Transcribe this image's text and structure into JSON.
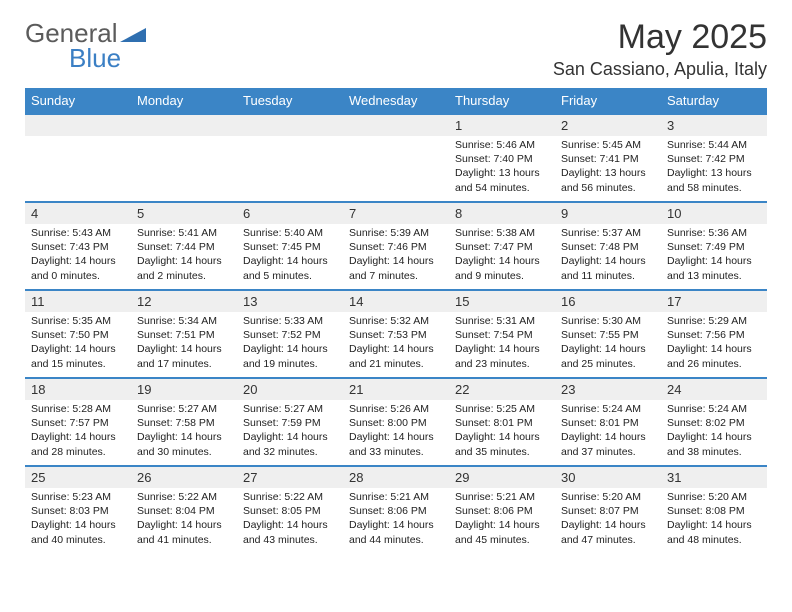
{
  "brand": {
    "general": "General",
    "blue": "Blue"
  },
  "title": "May 2025",
  "location": "San Cassiano, Apulia, Italy",
  "colors": {
    "accent": "#3b85c6",
    "logoGray": "#5b5b5b",
    "logoBlue": "#3b7fc4",
    "grayRow": "#efefef"
  },
  "dayHeaders": [
    "Sunday",
    "Monday",
    "Tuesday",
    "Wednesday",
    "Thursday",
    "Friday",
    "Saturday"
  ],
  "weeks": [
    [
      {
        "num": "",
        "sr": "",
        "ss": "",
        "dl": ""
      },
      {
        "num": "",
        "sr": "",
        "ss": "",
        "dl": ""
      },
      {
        "num": "",
        "sr": "",
        "ss": "",
        "dl": ""
      },
      {
        "num": "",
        "sr": "",
        "ss": "",
        "dl": ""
      },
      {
        "num": "1",
        "sr": "Sunrise: 5:46 AM",
        "ss": "Sunset: 7:40 PM",
        "dl": "Daylight: 13 hours and 54 minutes."
      },
      {
        "num": "2",
        "sr": "Sunrise: 5:45 AM",
        "ss": "Sunset: 7:41 PM",
        "dl": "Daylight: 13 hours and 56 minutes."
      },
      {
        "num": "3",
        "sr": "Sunrise: 5:44 AM",
        "ss": "Sunset: 7:42 PM",
        "dl": "Daylight: 13 hours and 58 minutes."
      }
    ],
    [
      {
        "num": "4",
        "sr": "Sunrise: 5:43 AM",
        "ss": "Sunset: 7:43 PM",
        "dl": "Daylight: 14 hours and 0 minutes."
      },
      {
        "num": "5",
        "sr": "Sunrise: 5:41 AM",
        "ss": "Sunset: 7:44 PM",
        "dl": "Daylight: 14 hours and 2 minutes."
      },
      {
        "num": "6",
        "sr": "Sunrise: 5:40 AM",
        "ss": "Sunset: 7:45 PM",
        "dl": "Daylight: 14 hours and 5 minutes."
      },
      {
        "num": "7",
        "sr": "Sunrise: 5:39 AM",
        "ss": "Sunset: 7:46 PM",
        "dl": "Daylight: 14 hours and 7 minutes."
      },
      {
        "num": "8",
        "sr": "Sunrise: 5:38 AM",
        "ss": "Sunset: 7:47 PM",
        "dl": "Daylight: 14 hours and 9 minutes."
      },
      {
        "num": "9",
        "sr": "Sunrise: 5:37 AM",
        "ss": "Sunset: 7:48 PM",
        "dl": "Daylight: 14 hours and 11 minutes."
      },
      {
        "num": "10",
        "sr": "Sunrise: 5:36 AM",
        "ss": "Sunset: 7:49 PM",
        "dl": "Daylight: 14 hours and 13 minutes."
      }
    ],
    [
      {
        "num": "11",
        "sr": "Sunrise: 5:35 AM",
        "ss": "Sunset: 7:50 PM",
        "dl": "Daylight: 14 hours and 15 minutes."
      },
      {
        "num": "12",
        "sr": "Sunrise: 5:34 AM",
        "ss": "Sunset: 7:51 PM",
        "dl": "Daylight: 14 hours and 17 minutes."
      },
      {
        "num": "13",
        "sr": "Sunrise: 5:33 AM",
        "ss": "Sunset: 7:52 PM",
        "dl": "Daylight: 14 hours and 19 minutes."
      },
      {
        "num": "14",
        "sr": "Sunrise: 5:32 AM",
        "ss": "Sunset: 7:53 PM",
        "dl": "Daylight: 14 hours and 21 minutes."
      },
      {
        "num": "15",
        "sr": "Sunrise: 5:31 AM",
        "ss": "Sunset: 7:54 PM",
        "dl": "Daylight: 14 hours and 23 minutes."
      },
      {
        "num": "16",
        "sr": "Sunrise: 5:30 AM",
        "ss": "Sunset: 7:55 PM",
        "dl": "Daylight: 14 hours and 25 minutes."
      },
      {
        "num": "17",
        "sr": "Sunrise: 5:29 AM",
        "ss": "Sunset: 7:56 PM",
        "dl": "Daylight: 14 hours and 26 minutes."
      }
    ],
    [
      {
        "num": "18",
        "sr": "Sunrise: 5:28 AM",
        "ss": "Sunset: 7:57 PM",
        "dl": "Daylight: 14 hours and 28 minutes."
      },
      {
        "num": "19",
        "sr": "Sunrise: 5:27 AM",
        "ss": "Sunset: 7:58 PM",
        "dl": "Daylight: 14 hours and 30 minutes."
      },
      {
        "num": "20",
        "sr": "Sunrise: 5:27 AM",
        "ss": "Sunset: 7:59 PM",
        "dl": "Daylight: 14 hours and 32 minutes."
      },
      {
        "num": "21",
        "sr": "Sunrise: 5:26 AM",
        "ss": "Sunset: 8:00 PM",
        "dl": "Daylight: 14 hours and 33 minutes."
      },
      {
        "num": "22",
        "sr": "Sunrise: 5:25 AM",
        "ss": "Sunset: 8:01 PM",
        "dl": "Daylight: 14 hours and 35 minutes."
      },
      {
        "num": "23",
        "sr": "Sunrise: 5:24 AM",
        "ss": "Sunset: 8:01 PM",
        "dl": "Daylight: 14 hours and 37 minutes."
      },
      {
        "num": "24",
        "sr": "Sunrise: 5:24 AM",
        "ss": "Sunset: 8:02 PM",
        "dl": "Daylight: 14 hours and 38 minutes."
      }
    ],
    [
      {
        "num": "25",
        "sr": "Sunrise: 5:23 AM",
        "ss": "Sunset: 8:03 PM",
        "dl": "Daylight: 14 hours and 40 minutes."
      },
      {
        "num": "26",
        "sr": "Sunrise: 5:22 AM",
        "ss": "Sunset: 8:04 PM",
        "dl": "Daylight: 14 hours and 41 minutes."
      },
      {
        "num": "27",
        "sr": "Sunrise: 5:22 AM",
        "ss": "Sunset: 8:05 PM",
        "dl": "Daylight: 14 hours and 43 minutes."
      },
      {
        "num": "28",
        "sr": "Sunrise: 5:21 AM",
        "ss": "Sunset: 8:06 PM",
        "dl": "Daylight: 14 hours and 44 minutes."
      },
      {
        "num": "29",
        "sr": "Sunrise: 5:21 AM",
        "ss": "Sunset: 8:06 PM",
        "dl": "Daylight: 14 hours and 45 minutes."
      },
      {
        "num": "30",
        "sr": "Sunrise: 5:20 AM",
        "ss": "Sunset: 8:07 PM",
        "dl": "Daylight: 14 hours and 47 minutes."
      },
      {
        "num": "31",
        "sr": "Sunrise: 5:20 AM",
        "ss": "Sunset: 8:08 PM",
        "dl": "Daylight: 14 hours and 48 minutes."
      }
    ]
  ]
}
